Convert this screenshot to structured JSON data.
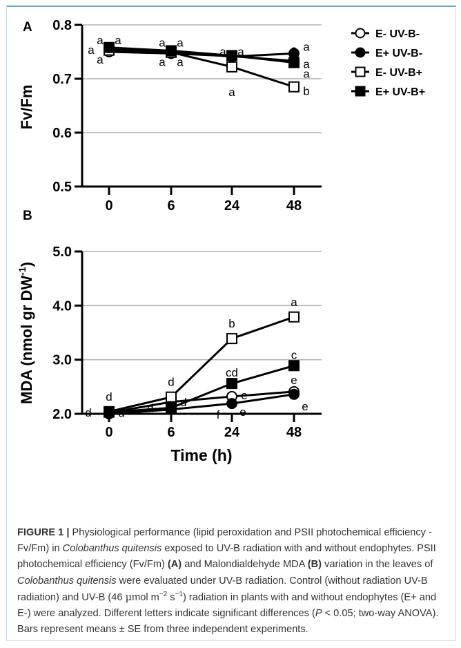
{
  "panels": {
    "a": {
      "letter": "A"
    },
    "b": {
      "letter": "B"
    }
  },
  "legend": [
    {
      "name": "E- UV-B-",
      "marker": "circle",
      "fill": "#ffffff"
    },
    {
      "name": "E+ UV-B-",
      "marker": "circle",
      "fill": "#000000"
    },
    {
      "name": "E- UV-B+",
      "marker": "square",
      "fill": "#ffffff"
    },
    {
      "name": "E+ UV-B+",
      "marker": "square",
      "fill": "#000000"
    }
  ],
  "x_title": "Time (h)",
  "chart_data": [
    {
      "type": "line",
      "panel": "A",
      "ylabel": "Fv/Fm",
      "xlabel": "",
      "categories": [
        "0",
        "6",
        "24",
        "48"
      ],
      "ylim": [
        0.5,
        0.8
      ],
      "yticks": [
        "0.5",
        "0.6",
        "0.7",
        "0.8"
      ],
      "grid": true,
      "legend_position": "right",
      "series": [
        {
          "name": "E- UV-B-",
          "values": [
            0.75,
            0.747,
            0.742,
            0.733
          ]
        },
        {
          "name": "E+ UV-B-",
          "values": [
            0.755,
            0.75,
            0.741,
            0.747
          ]
        },
        {
          "name": "E- UV-B+",
          "values": [
            0.753,
            0.749,
            0.722,
            0.685
          ]
        },
        {
          "name": "E+ UV-B+",
          "values": [
            0.758,
            0.752,
            0.743,
            0.73
          ]
        }
      ],
      "annotations": [
        {
          "x": "0",
          "text": "a",
          "pos": "tl"
        },
        {
          "x": "0",
          "text": "a",
          "pos": "tr"
        },
        {
          "x": "0",
          "text": "a",
          "pos": "l"
        },
        {
          "x": "0",
          "text": "a",
          "pos": "bl"
        },
        {
          "x": "6",
          "text": "a",
          "pos": "tl"
        },
        {
          "x": "6",
          "text": "a",
          "pos": "tr"
        },
        {
          "x": "6",
          "text": "a",
          "pos": "bl"
        },
        {
          "x": "6",
          "text": "a",
          "pos": "br"
        },
        {
          "x": "24",
          "text": "a",
          "pos": "tl"
        },
        {
          "x": "24",
          "text": "a",
          "pos": "tr"
        },
        {
          "x": "24",
          "text": "a",
          "pos": "b"
        },
        {
          "x": "48",
          "text": "a",
          "pos": "t"
        },
        {
          "x": "48",
          "text": "a",
          "pos": "r1"
        },
        {
          "x": "48",
          "text": "a",
          "pos": "r2"
        },
        {
          "x": "48",
          "text": "a",
          "pos": "r3"
        },
        {
          "x": "48",
          "text": "b",
          "pos": "r4"
        }
      ]
    },
    {
      "type": "line",
      "panel": "B",
      "ylabel": "MDA (nmol gr DW-1)",
      "xlabel": "Time (h)",
      "categories": [
        "0",
        "6",
        "24",
        "48"
      ],
      "ylim": [
        2.0,
        5.0
      ],
      "yticks": [
        "2.0",
        "3.0",
        "4.0",
        "5.0"
      ],
      "grid": true,
      "series": [
        {
          "name": "E- UV-B-",
          "values": [
            2.02,
            2.22,
            2.32,
            2.41
          ]
        },
        {
          "name": "E+ UV-B-",
          "values": [
            2.0,
            2.08,
            2.19,
            2.36
          ]
        },
        {
          "name": "E- UV-B+",
          "values": [
            2.04,
            2.31,
            3.39,
            3.79
          ]
        },
        {
          "name": "E+ UV-B+",
          "values": [
            2.03,
            2.11,
            2.56,
            2.89
          ]
        }
      ],
      "annotations": [
        {
          "x": "0",
          "text": "d",
          "pos": "t"
        },
        {
          "x": "0",
          "text": "d",
          "pos": "l"
        },
        {
          "x": "0",
          "text": "d",
          "pos": "r"
        },
        {
          "x": "6",
          "text": "d",
          "pos": "t"
        },
        {
          "x": "6",
          "text": "d",
          "pos": "l"
        },
        {
          "x": "6",
          "text": "d",
          "pos": "r"
        },
        {
          "x": "24",
          "text": "b",
          "pos": "t"
        },
        {
          "x": "24",
          "text": "cd",
          "pos": "t2"
        },
        {
          "x": "24",
          "text": "e",
          "pos": "r"
        },
        {
          "x": "24",
          "text": "e",
          "pos": "br"
        },
        {
          "x": "24",
          "text": "f",
          "pos": "bl"
        },
        {
          "x": "48",
          "text": "a",
          "pos": "t"
        },
        {
          "x": "48",
          "text": "c",
          "pos": "t2"
        },
        {
          "x": "48",
          "text": "e",
          "pos": "t3"
        },
        {
          "x": "48",
          "text": "e",
          "pos": "b"
        }
      ]
    }
  ],
  "caption": {
    "lead": "FIGURE 1 |",
    "s1": " Physiological performance (lipid peroxidation and PSII photochemical efficiency - Fv/Fm) in ",
    "species": "Colobanthus quitensis",
    "s2": " exposed to UV-B radiation with and without endophytes. PSII photochemical efficiency (Fv/Fm) ",
    "ref_a": "(A)",
    "s3": " and Malondialdehyde MDA ",
    "ref_b": "(B)",
    "s4": " variation in the leaves of ",
    "species2": "Colobanthus quitensis",
    "s5": " were evaluated under UV-B radiation. Control (without radiation UV-B radiation) and UV-B (46 ",
    "mu": "µ",
    "s6": "mol m",
    "exp1": "−2",
    "s7": " s",
    "exp2": "−1",
    "s8": ") radiation in plants with and without endophytes (E+ and E-) were analyzed. Different letters indicate significant differences (",
    "p": "P",
    "s9": " < 0.05; two-way ANOVA). Bars represent means ± SE from three independent experiments."
  }
}
